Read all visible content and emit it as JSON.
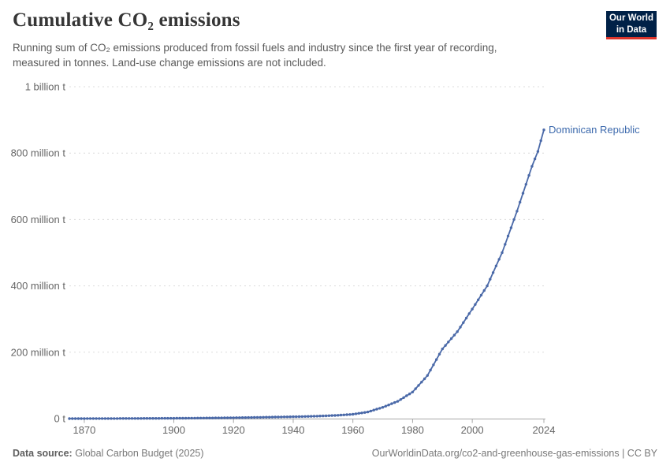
{
  "header": {
    "title": "Cumulative CO₂ emissions",
    "subtitle_lines": [
      "Running sum of CO₂ emissions produced from fossil fuels and industry since the first year of recording,",
      "measured in tonnes. Land-use change emissions are not included."
    ],
    "logo": {
      "line1": "Our World",
      "line2": "in Data"
    }
  },
  "chart_data": {
    "type": "line",
    "title": "Cumulative CO₂ emissions",
    "unit": "tonnes",
    "entity_label": "Dominican Republic",
    "legend_position": "end-of-line",
    "grid": "dashed-horizontal",
    "x_range": [
      1865,
      2024
    ],
    "x_ticks": [
      1870,
      1900,
      1920,
      1940,
      1960,
      1980,
      2000,
      2024
    ],
    "y_ticks": [
      {
        "value_mt": 0,
        "label": "0 t"
      },
      {
        "value_mt": 200,
        "label": "200 million t"
      },
      {
        "value_mt": 400,
        "label": "400 million t"
      },
      {
        "value_mt": 600,
        "label": "600 million t"
      },
      {
        "value_mt": 800,
        "label": "800 million t"
      },
      {
        "value_mt": 1000,
        "label": "1 billion t"
      }
    ],
    "series": [
      {
        "name": "Dominican Republic",
        "anchor_points_year_mt": [
          [
            1865,
            0.05
          ],
          [
            1870,
            0.1
          ],
          [
            1880,
            0.3
          ],
          [
            1890,
            0.6
          ],
          [
            1900,
            1.0
          ],
          [
            1910,
            1.7
          ],
          [
            1920,
            2.6
          ],
          [
            1930,
            4.0
          ],
          [
            1940,
            5.6
          ],
          [
            1945,
            6.6
          ],
          [
            1950,
            8.0
          ],
          [
            1955,
            10.0
          ],
          [
            1960,
            13.0
          ],
          [
            1965,
            20.0
          ],
          [
            1970,
            34.0
          ],
          [
            1975,
            52.0
          ],
          [
            1980,
            80.0
          ],
          [
            1985,
            130.0
          ],
          [
            1990,
            210.0
          ],
          [
            1995,
            262.0
          ],
          [
            2000,
            330.0
          ],
          [
            2005,
            400.0
          ],
          [
            2010,
            500.0
          ],
          [
            2015,
            625.0
          ],
          [
            2020,
            760.0
          ],
          [
            2022,
            805.0
          ],
          [
            2024,
            870.0
          ]
        ]
      }
    ],
    "colors": {
      "line": "#4a69a8",
      "entity_label": "#3d6aad",
      "grid": "#dcdcdc",
      "axis": "#a8a8a8",
      "tick_label": "#666666",
      "logo_bg": "#002147",
      "logo_stripe": "#dc352c"
    }
  },
  "footer": {
    "source_label": "Data source:",
    "source_value": "Global Carbon Budget (2025)",
    "credit": "OurWorldinData.org/co2-and-greenhouse-gas-emissions | CC BY"
  }
}
